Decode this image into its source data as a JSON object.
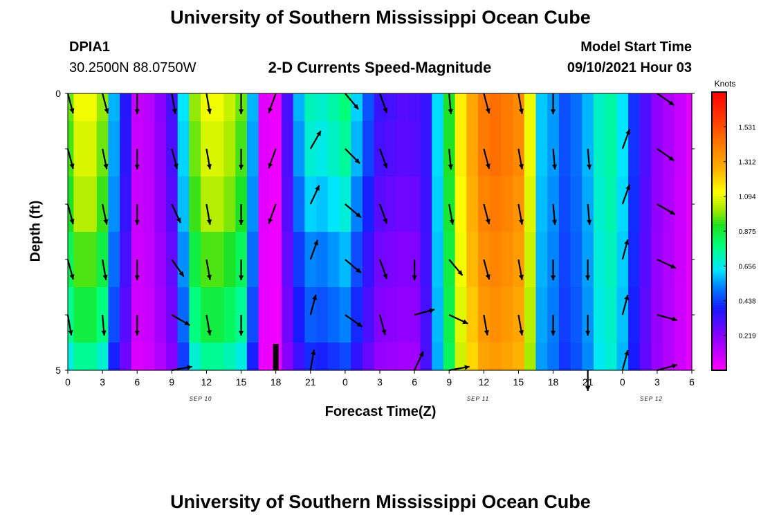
{
  "page": {
    "title_top": "University of Southern Mississippi Ocean Cube",
    "title_bottom": "University of Southern Mississippi Ocean Cube",
    "station_id": "DPIA1",
    "station_coords": "30.2500N  88.0750W",
    "chart_title": "2-D Currents Speed-Magnitude",
    "model_start_label": "Model Start Time",
    "model_start_value": "09/10/2021 Hour 03"
  },
  "colors": {
    "arrow": "#000000",
    "background": "#ffffff"
  },
  "chart_data": {
    "type": "heatmap",
    "title": "2-D Currents Speed-Magnitude",
    "xlabel": "Forecast Time(Z)",
    "ylabel": "Depth (ft)",
    "xlim": [
      0,
      54
    ],
    "ylim": [
      0,
      5
    ],
    "y_ticks": [
      "0",
      "5"
    ],
    "x_tick_labels": [
      "0",
      "3",
      "6",
      "9",
      "12",
      "15",
      "18",
      "21",
      "0",
      "3",
      "6",
      "9",
      "12",
      "15",
      "18",
      "21",
      "0",
      "3",
      "6"
    ],
    "date_labels": [
      {
        "text": "SEP 10",
        "hour": 11.5
      },
      {
        "text": "SEP 11",
        "hour": 35.5
      },
      {
        "text": "SEP 12",
        "hour": 50.5
      }
    ],
    "colorbar": {
      "unit": "Knots",
      "min": 0,
      "max": 1.75,
      "ticks": [
        "1.531",
        "1.312",
        "1.094",
        "0.875",
        "0.656",
        "0.438",
        "0.219"
      ],
      "tick_values": [
        1.531,
        1.312,
        1.094,
        0.875,
        0.656,
        0.438,
        0.219
      ]
    },
    "time_hours": [
      0,
      1,
      2,
      3,
      4,
      5,
      6,
      7,
      8,
      9,
      10,
      11,
      12,
      13,
      14,
      15,
      16,
      17,
      18,
      19,
      20,
      21,
      22,
      23,
      24,
      25,
      26,
      27,
      28,
      29,
      30,
      31,
      32,
      33,
      34,
      35,
      36,
      37,
      38,
      39,
      40,
      41,
      42,
      43,
      44,
      45,
      46,
      47,
      48,
      49,
      50,
      51,
      52,
      53,
      54
    ],
    "depth_rows": [
      "0-0.5",
      "0.5-1.5",
      "1.5-2.5",
      "2.5-3.5",
      "3.5-4.5",
      "4.5-5"
    ],
    "speed_profile_knots": [
      0.92,
      1.05,
      1.05,
      0.95,
      0.55,
      0.35,
      0.1,
      0.12,
      0.2,
      0.3,
      0.6,
      0.95,
      1.05,
      1.05,
      1.0,
      0.92,
      0.55,
      0.05,
      0.03,
      0.3,
      0.55,
      0.68,
      0.66,
      0.7,
      0.75,
      0.58,
      0.44,
      0.32,
      0.3,
      0.28,
      0.29,
      0.34,
      0.62,
      0.9,
      1.15,
      1.3,
      1.42,
      1.45,
      1.42,
      1.38,
      1.1,
      0.6,
      0.55,
      0.46,
      0.5,
      0.58,
      0.7,
      0.74,
      0.63,
      0.42,
      0.3,
      0.2,
      0.15,
      0.1,
      0.05
    ],
    "depth_adjust": [
      {
        "until_hour": 19,
        "factors": [
          1.05,
          1.02,
          0.98,
          0.9,
          0.82,
          0.72
        ]
      },
      {
        "until_hour": 30,
        "factors": [
          1.05,
          1.0,
          0.9,
          0.78,
          0.7,
          0.6
        ]
      },
      {
        "until_hour": 54,
        "factors": [
          1.0,
          1.0,
          0.98,
          0.96,
          0.94,
          0.92
        ]
      }
    ],
    "rod_marker": {
      "hour": 18,
      "depth_from": 4.5,
      "depth_to": 5
    },
    "arrows": [
      {
        "hour": 0,
        "directions": [
          165,
          165,
          165,
          165,
          170,
          -1
        ]
      },
      {
        "hour": 3,
        "directions": [
          165,
          168,
          168,
          170,
          175,
          -1
        ]
      },
      {
        "hour": 6,
        "directions": [
          180,
          180,
          180,
          180,
          180,
          -1
        ]
      },
      {
        "hour": 9,
        "directions": [
          170,
          165,
          155,
          145,
          120,
          80
        ]
      },
      {
        "hour": 12,
        "directions": [
          170,
          170,
          170,
          170,
          170,
          -1
        ]
      },
      {
        "hour": 15,
        "directions": [
          180,
          180,
          180,
          180,
          180,
          -1
        ]
      },
      {
        "hour": 18,
        "directions": [
          200,
          200,
          200,
          -1,
          -1,
          -1
        ]
      },
      {
        "hour": 21,
        "directions": [
          -1,
          30,
          25,
          20,
          15,
          10
        ]
      },
      {
        "hour": 24,
        "directions": [
          140,
          135,
          130,
          130,
          125,
          -1
        ]
      },
      {
        "hour": 27,
        "directions": [
          160,
          160,
          160,
          160,
          165,
          -1
        ]
      },
      {
        "hour": 30,
        "directions": [
          -1,
          -1,
          -1,
          180,
          75,
          25
        ]
      },
      {
        "hour": 33,
        "directions": [
          175,
          175,
          170,
          140,
          115,
          80
        ]
      },
      {
        "hour": 36,
        "directions": [
          165,
          165,
          165,
          165,
          170,
          -1
        ]
      },
      {
        "hour": 39,
        "directions": [
          170,
          170,
          170,
          170,
          170,
          -1
        ]
      },
      {
        "hour": 42,
        "directions": [
          180,
          175,
          175,
          180,
          180,
          -1
        ]
      },
      {
        "hour": 45,
        "directions": [
          -1,
          175,
          175,
          180,
          180,
          180
        ]
      },
      {
        "hour": 48,
        "directions": [
          -1,
          20,
          20,
          15,
          15,
          15
        ]
      },
      {
        "hour": 51,
        "directions": [
          125,
          125,
          120,
          115,
          105,
          75
        ]
      }
    ]
  }
}
